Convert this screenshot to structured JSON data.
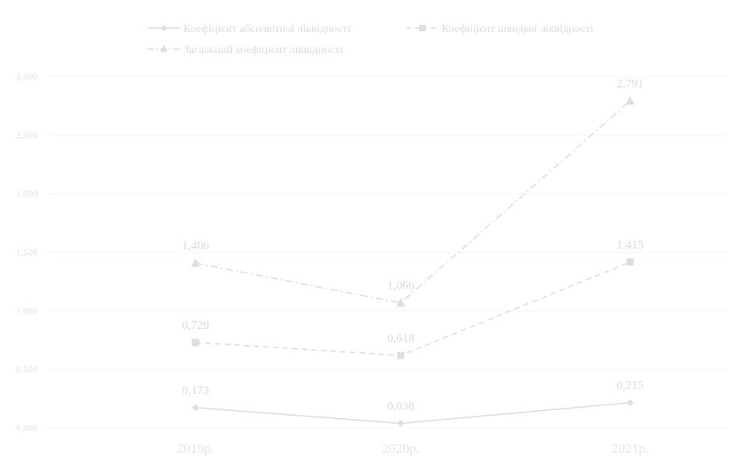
{
  "chart_data": {
    "type": "line",
    "categories": [
      "2019р.",
      "2020р.",
      "2021р."
    ],
    "series": [
      {
        "name": "Коефіцієнт абсолютної ліквідності",
        "values": [
          0.173,
          0.038,
          0.215
        ],
        "labels": [
          "0,173",
          "0,038",
          "0,215"
        ],
        "marker": "diamond",
        "dash": "solid",
        "color": "#dedede"
      },
      {
        "name": "Коефіцієнт швидкої ліквідності",
        "values": [
          0.729,
          0.618,
          1.415
        ],
        "labels": [
          "0,729",
          "0,618",
          "1,415"
        ],
        "marker": "square",
        "dash": "dashed",
        "color": "#dedede"
      },
      {
        "name": "Загальний коефіцієнт ліквідності",
        "values": [
          1.406,
          1.066,
          2.791
        ],
        "labels": [
          "1,406",
          "1,066",
          "2,791"
        ],
        "marker": "triangle",
        "dash": "dashdot",
        "color": "#dedede"
      }
    ],
    "yticks": [
      "0,000",
      "0,500",
      "1,000",
      "1,500",
      "2,000",
      "2,500",
      "3,000"
    ],
    "ylim": [
      0,
      3
    ],
    "grid": true,
    "legend": "top"
  }
}
